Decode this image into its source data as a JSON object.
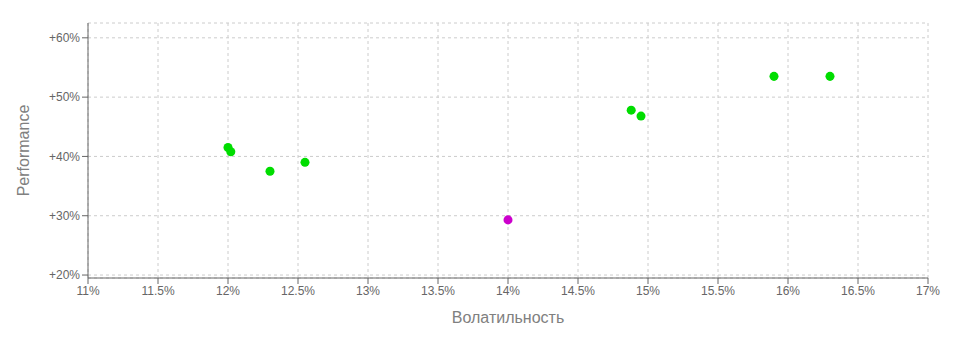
{
  "chart_data": {
    "type": "scatter",
    "x_label": "Волатильность",
    "y_label": "Performance",
    "xlim": [
      0.11,
      0.17
    ],
    "ylim": [
      0.195,
      0.625
    ],
    "xticks": [
      {
        "value": 0.11,
        "label": "11%"
      },
      {
        "value": 0.115,
        "label": "11.5%"
      },
      {
        "value": 0.12,
        "label": "12%"
      },
      {
        "value": 0.125,
        "label": "12.5%"
      },
      {
        "value": 0.13,
        "label": "13%"
      },
      {
        "value": 0.135,
        "label": "13.5%"
      },
      {
        "value": 0.14,
        "label": "14%"
      },
      {
        "value": 0.145,
        "label": "14.5%"
      },
      {
        "value": 0.15,
        "label": "15%"
      },
      {
        "value": 0.155,
        "label": "15.5%"
      },
      {
        "value": 0.16,
        "label": "16%"
      },
      {
        "value": 0.165,
        "label": "16.5%"
      },
      {
        "value": 0.17,
        "label": "17%"
      }
    ],
    "yticks": [
      {
        "value": 0.2,
        "label": "+20%"
      },
      {
        "value": 0.3,
        "label": "+30%"
      },
      {
        "value": 0.4,
        "label": "+40%"
      },
      {
        "value": 0.5,
        "label": "+50%"
      },
      {
        "value": 0.6,
        "label": "+60%"
      }
    ],
    "grid": true,
    "series": [
      {
        "color": "#00dd00",
        "marker": "circle",
        "x": [
          0.12,
          0.1202,
          0.123,
          0.1255,
          0.1488,
          0.1495,
          0.159,
          0.163
        ],
        "values": [
          0.415,
          0.408,
          0.375,
          0.39,
          0.478,
          0.468,
          0.535,
          0.535
        ]
      },
      {
        "color": "#cc00cc",
        "marker": "circle",
        "x": [
          0.14
        ],
        "values": [
          0.293
        ]
      }
    ]
  }
}
